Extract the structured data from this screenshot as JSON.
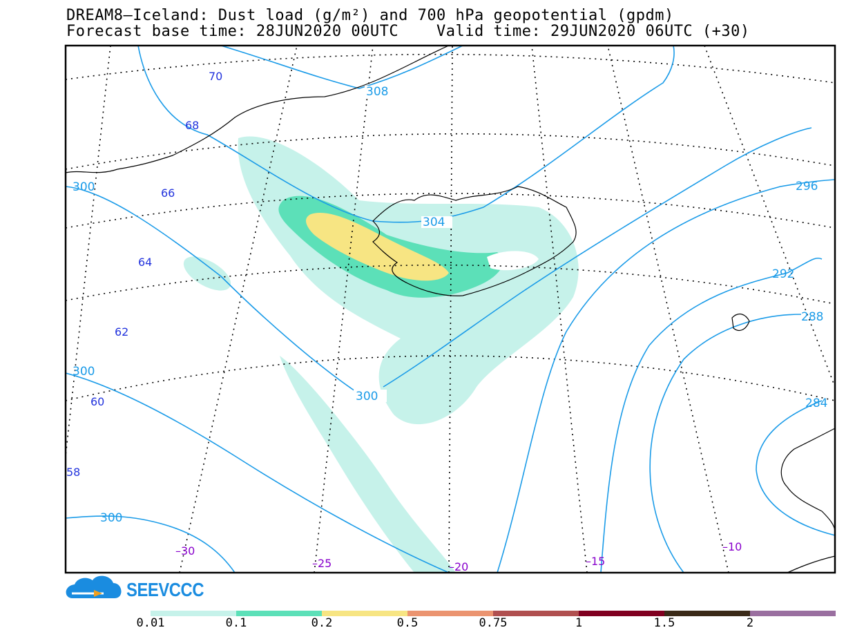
{
  "title": {
    "line1": "DREAM8—Iceland: Dust load (g/m²) and 700 hPa geopotential (gpdm)",
    "line2": "Forecast base time: 28JUN2020 00UTC    Valid time: 29JUN2020 06UTC (+30)"
  },
  "logo_text": "SEEVCCC",
  "geopotential_labels": [
    "308",
    "304",
    "300",
    "300",
    "300",
    "300",
    "296",
    "292",
    "288",
    "284"
  ],
  "latitude_labels": [
    "70",
    "68",
    "66",
    "64",
    "62",
    "60",
    "58"
  ],
  "longitude_labels": [
    "–30",
    "–25",
    "–20",
    "–15",
    "–10"
  ],
  "colorbar": {
    "labels": [
      "0.01",
      "0.1",
      "0.2",
      "0.5",
      "0.75",
      "1",
      "1.5",
      "2"
    ],
    "colors": [
      "#c6f2ea",
      "#5ce0b8",
      "#f7e583",
      "#eb9470",
      "#b05050",
      "#800020",
      "#3a2a18",
      "#9a6fa0"
    ]
  },
  "colors": {
    "contour": "#1a9be8",
    "lat_label": "#2233dd",
    "lon_label": "#8800cc",
    "coast": "#000000"
  }
}
